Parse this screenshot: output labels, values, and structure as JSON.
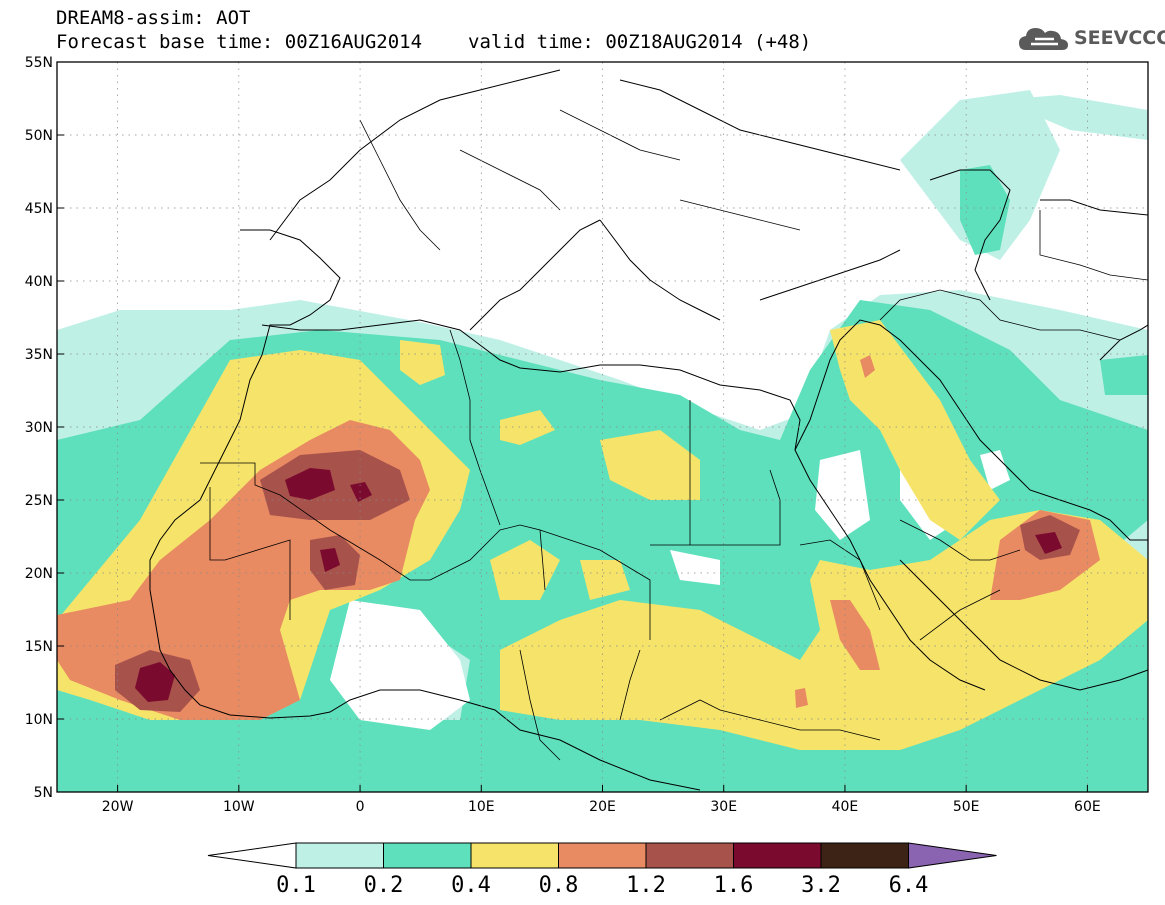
{
  "header": {
    "title": "DREAM8-assim: AOT",
    "base_time": "Forecast base time: 00Z16AUG2014",
    "valid_time": "valid time: 00Z18AUG2014 (+48)",
    "logo_text": "SEEVCCC",
    "logo_icon": "cloud-icon"
  },
  "map": {
    "lon_range": [
      -25,
      65
    ],
    "lat_range": [
      5,
      55
    ],
    "lat_labels": [
      "5N",
      "10N",
      "15N",
      "20N",
      "25N",
      "30N",
      "35N",
      "40N",
      "45N",
      "50N",
      "55N"
    ],
    "lon_labels": [
      "20W",
      "10W",
      "0",
      "10E",
      "20E",
      "30E",
      "40E",
      "50E",
      "60E"
    ],
    "gridlines": "dotted"
  },
  "colorbar": {
    "levels": [
      "0.1",
      "0.2",
      "0.4",
      "0.8",
      "1.2",
      "1.6",
      "3.2",
      "6.4"
    ],
    "colors": [
      "#ffffff",
      "#bff0e6",
      "#5fe0bc",
      "#f6e46a",
      "#e88a62",
      "#a8524c",
      "#7a0a2e",
      "#3d2316",
      "#8a64b0"
    ]
  }
}
